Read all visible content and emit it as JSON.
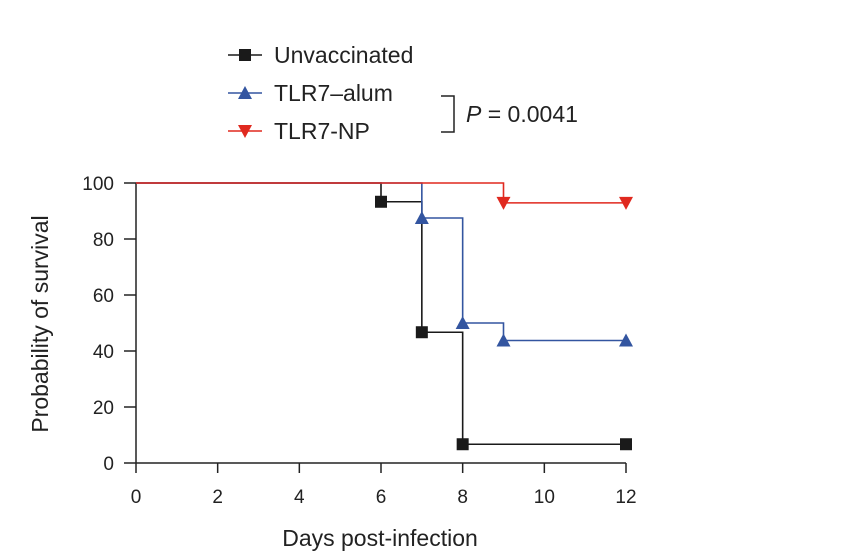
{
  "chart_data": {
    "type": "line",
    "step": true,
    "xlabel": "Days post-infection",
    "ylabel": "Probability of survival",
    "xlim": [
      0,
      12
    ],
    "ylim": [
      0,
      100
    ],
    "xticks": [
      "0",
      "2",
      "4",
      "6",
      "8",
      "10",
      "12"
    ],
    "xtick_values": [
      0,
      2,
      4,
      6,
      8,
      10,
      12
    ],
    "yticks": [
      "0",
      "20",
      "40",
      "60",
      "80",
      "100"
    ],
    "ytick_values": [
      0,
      20,
      40,
      60,
      80,
      100
    ],
    "grid": false,
    "legend_position": "top",
    "series": [
      {
        "name": "Unvaccinated",
        "color": "#1a1a1a",
        "marker": "square",
        "steps": [
          [
            0,
            100
          ],
          [
            6,
            93.3
          ],
          [
            7,
            46.7
          ],
          [
            8,
            6.7
          ],
          [
            12,
            6.7
          ]
        ],
        "markers": [
          [
            6,
            93.3
          ],
          [
            7,
            46.7
          ],
          [
            8,
            6.7
          ],
          [
            12,
            6.7
          ]
        ]
      },
      {
        "name": "TLR7–alum",
        "color": "#3355a0",
        "marker": "triangle-up",
        "steps": [
          [
            0,
            100
          ],
          [
            7,
            87.5
          ],
          [
            8,
            50
          ],
          [
            9,
            43.75
          ],
          [
            12,
            43.75
          ]
        ],
        "markers": [
          [
            7,
            87.5
          ],
          [
            8,
            50
          ],
          [
            9,
            43.75
          ],
          [
            12,
            43.75
          ]
        ]
      },
      {
        "name": "TLR7-NP",
        "color": "#e0291f",
        "marker": "triangle-down",
        "steps": [
          [
            0,
            100
          ],
          [
            9,
            92.9
          ],
          [
            12,
            92.9
          ]
        ],
        "markers": [
          [
            9,
            92.9
          ],
          [
            12,
            92.9
          ]
        ]
      }
    ],
    "annotation": {
      "p_label": "P",
      "p_value": " = 0.0041"
    }
  }
}
